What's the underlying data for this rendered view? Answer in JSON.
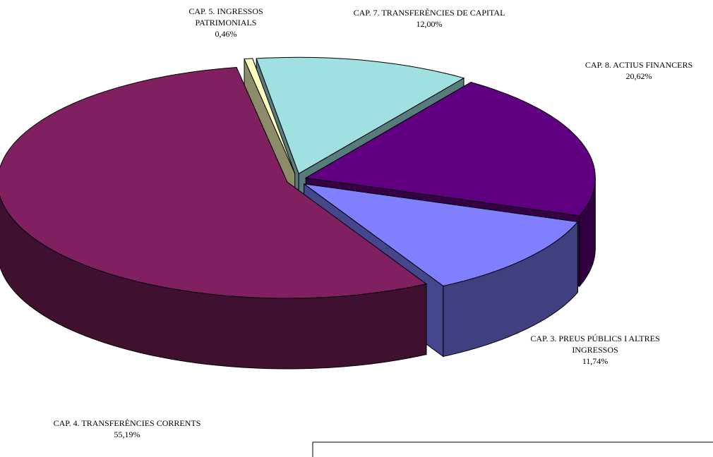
{
  "chart_data": {
    "type": "pie",
    "categories": [
      "CAP. 3. PREUS PÚBLICS I ALTRES INGRESSOS",
      "CAP. 4. TRANSFERÈNCIES CORRENTS",
      "CAP. 5. INGRESSOS PATRIMONIALS",
      "CAP. 7. TRANSFERÈNCIES DE CAPITAL",
      "CAP. 8. ACTIUS FINANCERS"
    ],
    "values": [
      11.74,
      55.19,
      0.46,
      12.0,
      20.62
    ],
    "value_labels": [
      "11,74%",
      "55,19%",
      "0,46%",
      "12,00%",
      "20,62%"
    ],
    "colors": [
      "#8080ff",
      "#802060",
      "#ffffc0",
      "#a0e0e0",
      "#600080"
    ]
  }
}
